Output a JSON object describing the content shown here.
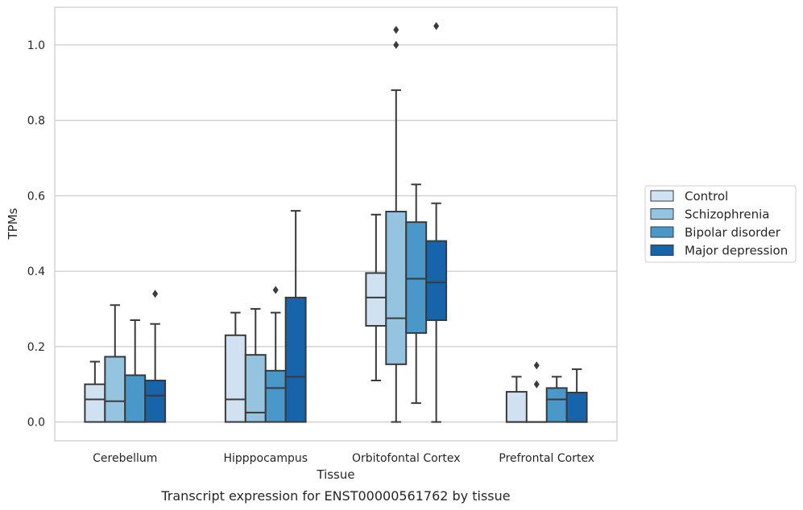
{
  "chart_data": {
    "type": "box",
    "xlabel": "Tissue",
    "ylabel": "TPMs",
    "caption": "Transcript expression for ENST00000561762 by tissue",
    "ylim": [
      -0.05,
      1.1
    ],
    "yticks": [
      0.0,
      0.2,
      0.4,
      0.6,
      0.8,
      1.0
    ],
    "ytick_labels": [
      "0.0",
      "0.2",
      "0.4",
      "0.6",
      "0.8",
      "1.0"
    ],
    "grid": "horizontal",
    "legend_position": "right",
    "categories": [
      "Cerebellum",
      "Hipppocampus",
      "Orbitofontal Cortex",
      "Prefrontal Cortex"
    ],
    "series": [
      {
        "name": "Control",
        "color": "#d0e1f2",
        "boxes": [
          {
            "whisker_low": 0.0,
            "q1": 0.0,
            "median": 0.06,
            "q3": 0.1,
            "whisker_high": 0.16,
            "outliers": []
          },
          {
            "whisker_low": 0.0,
            "q1": 0.0,
            "median": 0.06,
            "q3": 0.23,
            "whisker_high": 0.29,
            "outliers": []
          },
          {
            "whisker_low": 0.11,
            "q1": 0.255,
            "median": 0.33,
            "q3": 0.395,
            "whisker_high": 0.55,
            "outliers": []
          },
          {
            "whisker_low": 0.0,
            "q1": 0.0,
            "median": 0.0,
            "q3": 0.08,
            "whisker_high": 0.12,
            "outliers": []
          }
        ]
      },
      {
        "name": "Schizophrenia",
        "color": "#94c4df",
        "boxes": [
          {
            "whisker_low": 0.0,
            "q1": 0.0,
            "median": 0.055,
            "q3": 0.173,
            "whisker_high": 0.31,
            "outliers": []
          },
          {
            "whisker_low": 0.0,
            "q1": 0.0,
            "median": 0.025,
            "q3": 0.178,
            "whisker_high": 0.3,
            "outliers": []
          },
          {
            "whisker_low": 0.0,
            "q1": 0.153,
            "median": 0.275,
            "q3": 0.558,
            "whisker_high": 0.88,
            "outliers": [
              1.0,
              1.04
            ]
          },
          {
            "whisker_low": 0.0,
            "q1": 0.0,
            "median": 0.0,
            "q3": 0.0,
            "whisker_high": 0.0,
            "outliers": [
              0.1,
              0.15
            ]
          }
        ]
      },
      {
        "name": "Bipolar disorder",
        "color": "#4a98c9",
        "boxes": [
          {
            "whisker_low": 0.0,
            "q1": 0.0,
            "median": 0.0,
            "q3": 0.124,
            "whisker_high": 0.27,
            "outliers": []
          },
          {
            "whisker_low": 0.0,
            "q1": 0.0,
            "median": 0.09,
            "q3": 0.136,
            "whisker_high": 0.29,
            "outliers": [
              0.35
            ]
          },
          {
            "whisker_low": 0.05,
            "q1": 0.236,
            "median": 0.38,
            "q3": 0.53,
            "whisker_high": 0.63,
            "outliers": []
          },
          {
            "whisker_low": 0.0,
            "q1": 0.0,
            "median": 0.06,
            "q3": 0.09,
            "whisker_high": 0.12,
            "outliers": []
          }
        ]
      },
      {
        "name": "Major depression",
        "color": "#1764ab",
        "boxes": [
          {
            "whisker_low": 0.0,
            "q1": 0.0,
            "median": 0.07,
            "q3": 0.11,
            "whisker_high": 0.26,
            "outliers": [
              0.34
            ]
          },
          {
            "whisker_low": 0.0,
            "q1": 0.0,
            "median": 0.12,
            "q3": 0.33,
            "whisker_high": 0.56,
            "outliers": []
          },
          {
            "whisker_low": 0.0,
            "q1": 0.27,
            "median": 0.37,
            "q3": 0.48,
            "whisker_high": 0.58,
            "outliers": [
              1.05
            ]
          },
          {
            "whisker_low": 0.0,
            "q1": 0.0,
            "median": 0.0,
            "q3": 0.078,
            "whisker_high": 0.14,
            "outliers": []
          }
        ]
      }
    ]
  }
}
